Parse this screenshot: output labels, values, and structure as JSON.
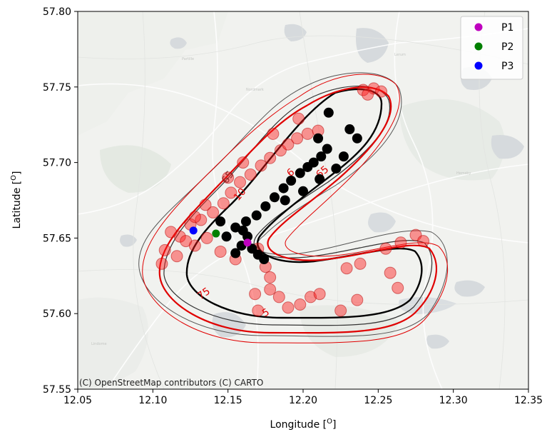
{
  "chart_data": {
    "type": "scatter",
    "title": "",
    "xlabel": "Longitude [O]",
    "ylabel": "Latitude [O]",
    "xlim": [
      12.05,
      12.35
    ],
    "ylim": [
      57.55,
      57.8
    ],
    "xticks": [
      "12.05",
      "12.10",
      "12.15",
      "12.20",
      "12.25",
      "12.30",
      "12.35"
    ],
    "yticks": [
      "57.55",
      "57.60",
      "57.65",
      "57.70",
      "57.75",
      "57.80"
    ],
    "grid": false,
    "legend_position": "top-right",
    "series": [
      {
        "name": "P1",
        "color": "#bf00bf",
        "points": [
          [
            12.163,
            57.647
          ]
        ]
      },
      {
        "name": "P2",
        "color": "#007f00",
        "points": [
          [
            12.142,
            57.653
          ]
        ]
      },
      {
        "name": "P3",
        "color": "#0000ff",
        "points": [
          [
            12.127,
            57.655
          ]
        ]
      }
    ],
    "red_track_points": [
      [
        12.118,
        57.651
      ],
      [
        12.122,
        57.648
      ],
      [
        12.112,
        57.654
      ],
      [
        12.125,
        57.659
      ],
      [
        12.132,
        57.662
      ],
      [
        12.14,
        57.667
      ],
      [
        12.147,
        57.673
      ],
      [
        12.152,
        57.68
      ],
      [
        12.158,
        57.687
      ],
      [
        12.165,
        57.692
      ],
      [
        12.172,
        57.698
      ],
      [
        12.178,
        57.703
      ],
      [
        12.185,
        57.708
      ],
      [
        12.19,
        57.712
      ],
      [
        12.196,
        57.716
      ],
      [
        12.203,
        57.719
      ],
      [
        12.21,
        57.721
      ],
      [
        12.108,
        57.642
      ],
      [
        12.106,
        57.633
      ],
      [
        12.116,
        57.638
      ],
      [
        12.128,
        57.645
      ],
      [
        12.136,
        57.65
      ],
      [
        12.145,
        57.641
      ],
      [
        12.155,
        57.636
      ],
      [
        12.17,
        57.643
      ],
      [
        12.175,
        57.631
      ],
      [
        12.178,
        57.616
      ],
      [
        12.184,
        57.611
      ],
      [
        12.19,
        57.604
      ],
      [
        12.198,
        57.606
      ],
      [
        12.205,
        57.611
      ],
      [
        12.211,
        57.613
      ],
      [
        12.168,
        57.613
      ],
      [
        12.17,
        57.602
      ],
      [
        12.178,
        57.624
      ],
      [
        12.225,
        57.602
      ],
      [
        12.236,
        57.609
      ],
      [
        12.263,
        57.617
      ],
      [
        12.258,
        57.627
      ],
      [
        12.255,
        57.643
      ],
      [
        12.265,
        57.647
      ],
      [
        12.275,
        57.652
      ],
      [
        12.28,
        57.648
      ],
      [
        12.238,
        57.633
      ],
      [
        12.229,
        57.63
      ],
      [
        12.24,
        57.748
      ],
      [
        12.247,
        57.749
      ],
      [
        12.252,
        57.747
      ],
      [
        12.243,
        57.745
      ],
      [
        12.197,
        57.729
      ],
      [
        12.18,
        57.719
      ],
      [
        12.16,
        57.7
      ],
      [
        12.15,
        57.69
      ],
      [
        12.135,
        57.672
      ],
      [
        12.128,
        57.664
      ]
    ],
    "black_track_points": [
      [
        12.163,
        57.651
      ],
      [
        12.16,
        57.655
      ],
      [
        12.166,
        57.643
      ],
      [
        12.17,
        57.639
      ],
      [
        12.174,
        57.636
      ],
      [
        12.162,
        57.661
      ],
      [
        12.169,
        57.665
      ],
      [
        12.175,
        57.671
      ],
      [
        12.181,
        57.677
      ],
      [
        12.187,
        57.683
      ],
      [
        12.192,
        57.688
      ],
      [
        12.198,
        57.693
      ],
      [
        12.203,
        57.697
      ],
      [
        12.207,
        57.7
      ],
      [
        12.212,
        57.704
      ],
      [
        12.216,
        57.709
      ],
      [
        12.21,
        57.716
      ],
      [
        12.222,
        57.696
      ],
      [
        12.227,
        57.704
      ],
      [
        12.236,
        57.716
      ],
      [
        12.217,
        57.733
      ],
      [
        12.231,
        57.722
      ],
      [
        12.155,
        57.657
      ],
      [
        12.149,
        57.651
      ],
      [
        12.145,
        57.661
      ],
      [
        12.188,
        57.675
      ],
      [
        12.2,
        57.681
      ],
      [
        12.211,
        57.689
      ],
      [
        12.159,
        57.645
      ],
      [
        12.155,
        57.64
      ]
    ],
    "contour_labels": [
      "65",
      "10",
      "6",
      "65",
      "75",
      "5"
    ]
  },
  "attribution": "(C) OpenStreetMap contributors (C) CARTO"
}
